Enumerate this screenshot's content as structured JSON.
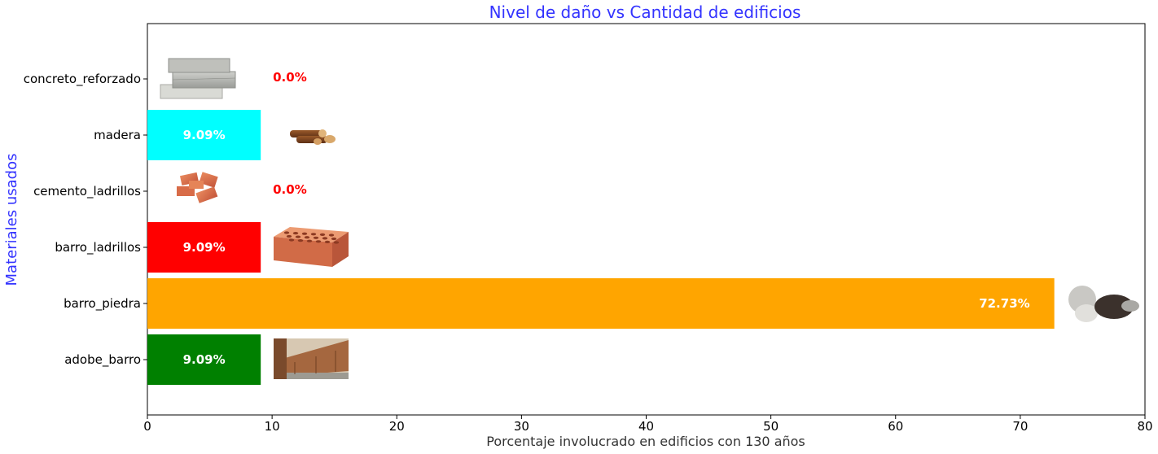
{
  "chart_data": {
    "type": "bar",
    "orientation": "horizontal",
    "title": "Nivel de daño vs Cantidad de edificios",
    "xlabel": "Porcentaje involucrado en edificios con 130 años",
    "ylabel": "Materiales usados",
    "xlim": [
      0,
      80
    ],
    "xticks": [
      "0",
      "10",
      "20",
      "30",
      "40",
      "50",
      "60",
      "70",
      "80"
    ],
    "grid": false,
    "categories": [
      "concreto_reforzado",
      "madera",
      "cemento_ladrillos",
      "barro_ladrillos",
      "barro_piedra",
      "adobe_barro"
    ],
    "values": [
      0.0,
      9.09,
      0.0,
      9.09,
      72.73,
      9.09
    ],
    "labels": [
      "0.0%",
      "9.09%",
      "0.0%",
      "9.09%",
      "72.73%",
      "9.09%"
    ],
    "colors": [
      "#0000ff",
      "#00ffff",
      "#0000ff",
      "#ff0000",
      "#ffa500",
      "#008000"
    ],
    "images": [
      "concrete-blocks-image",
      "wood-logs-image",
      "cement-bricks-image",
      "clay-brick-image",
      "river-stones-image",
      "adobe-wall-image"
    ],
    "title_color": "#3333ff",
    "ylabel_color": "#3333ff",
    "zero_label_color": "#ff0000",
    "bar_label_color": "#ffffff"
  }
}
